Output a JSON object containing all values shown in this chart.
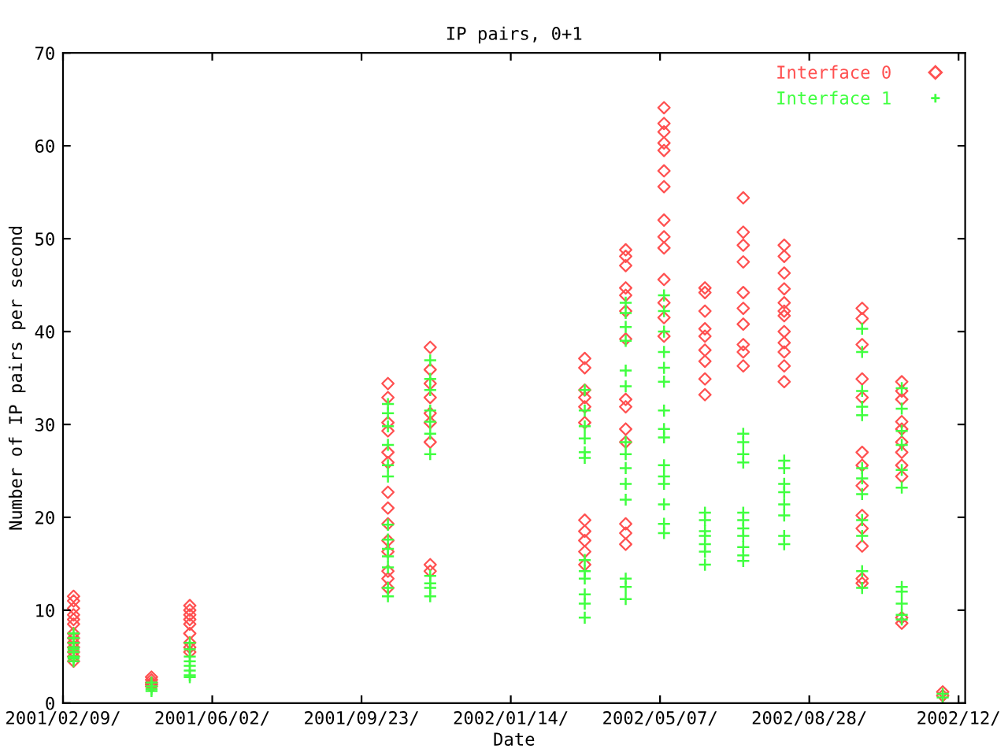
{
  "chart_data": {
    "type": "scatter",
    "title": "IP pairs, 0+1",
    "xlabel": "Date",
    "ylabel": "Number of IP pairs per second",
    "xlim": [
      "2001-02-09",
      "2002-12-24"
    ],
    "ylim": [
      0,
      70
    ],
    "yticks": [
      0,
      10,
      20,
      30,
      40,
      50,
      60,
      70
    ],
    "xticks": [
      {
        "value": "2001-02-09",
        "label": "2001/02/09/"
      },
      {
        "value": "2001-06-02",
        "label": "2001/06/02/"
      },
      {
        "value": "2001-09-23",
        "label": "2001/09/23/"
      },
      {
        "value": "2002-01-14",
        "label": "2002/01/14/"
      },
      {
        "value": "2002-05-07",
        "label": "2002/05/07/"
      },
      {
        "value": "2002-08-28",
        "label": "2002/08/28/"
      },
      {
        "value": "2002-12-19",
        "label": "2002/12/"
      }
    ],
    "grid": false,
    "legend": "top right",
    "series": [
      {
        "name": "Interface 0",
        "color": "#ff5050",
        "marker": "diamond",
        "x": [
          "2001-02-17",
          "2001-02-17",
          "2001-02-17",
          "2001-02-17",
          "2001-02-17",
          "2001-02-17",
          "2001-02-17",
          "2001-02-17",
          "2001-02-17",
          "2001-02-17",
          "2001-02-17",
          "2001-02-17",
          "2001-02-17",
          "2001-04-17",
          "2001-04-17",
          "2001-04-17",
          "2001-04-17",
          "2001-04-17",
          "2001-05-16",
          "2001-05-16",
          "2001-05-16",
          "2001-05-16",
          "2001-05-16",
          "2001-05-16",
          "2001-05-16",
          "2001-05-16",
          "2001-05-16",
          "2001-10-13",
          "2001-10-13",
          "2001-10-13",
          "2001-10-13",
          "2001-10-13",
          "2001-10-13",
          "2001-10-13",
          "2001-10-13",
          "2001-10-13",
          "2001-10-13",
          "2001-10-13",
          "2001-10-13",
          "2001-10-13",
          "2001-10-13",
          "2001-11-14",
          "2001-11-14",
          "2001-11-14",
          "2001-11-14",
          "2001-11-14",
          "2001-11-14",
          "2001-11-14",
          "2001-11-14",
          "2001-11-14",
          "2002-03-11",
          "2002-03-11",
          "2002-03-11",
          "2002-03-11",
          "2002-03-11",
          "2002-03-11",
          "2002-03-11",
          "2002-03-11",
          "2002-03-11",
          "2002-03-11",
          "2002-03-11",
          "2002-04-11",
          "2002-04-11",
          "2002-04-11",
          "2002-04-11",
          "2002-04-11",
          "2002-04-11",
          "2002-04-11",
          "2002-04-11",
          "2002-04-11",
          "2002-04-11",
          "2002-04-11",
          "2002-04-11",
          "2002-04-11",
          "2002-04-11",
          "2002-05-10",
          "2002-05-10",
          "2002-05-10",
          "2002-05-10",
          "2002-05-10",
          "2002-05-10",
          "2002-05-10",
          "2002-05-10",
          "2002-05-10",
          "2002-05-10",
          "2002-05-10",
          "2002-05-10",
          "2002-05-10",
          "2002-05-10",
          "2002-06-10",
          "2002-06-10",
          "2002-06-10",
          "2002-06-10",
          "2002-06-10",
          "2002-06-10",
          "2002-06-10",
          "2002-06-10",
          "2002-06-10",
          "2002-07-09",
          "2002-07-09",
          "2002-07-09",
          "2002-07-09",
          "2002-07-09",
          "2002-07-09",
          "2002-07-09",
          "2002-07-09",
          "2002-07-09",
          "2002-07-09",
          "2002-08-09",
          "2002-08-09",
          "2002-08-09",
          "2002-08-09",
          "2002-08-09",
          "2002-08-09",
          "2002-08-09",
          "2002-08-09",
          "2002-08-09",
          "2002-08-09",
          "2002-08-09",
          "2002-08-09",
          "2002-10-07",
          "2002-10-07",
          "2002-10-07",
          "2002-10-07",
          "2002-10-07",
          "2002-10-07",
          "2002-10-07",
          "2002-10-07",
          "2002-10-07",
          "2002-10-07",
          "2002-10-07",
          "2002-10-07",
          "2002-10-07",
          "2002-11-06",
          "2002-11-06",
          "2002-11-06",
          "2002-11-06",
          "2002-11-06",
          "2002-11-06",
          "2002-11-06",
          "2002-11-06",
          "2002-11-06",
          "2002-11-06",
          "2002-11-06",
          "2002-12-07",
          "2002-12-07"
        ],
        "values": [
          11.5,
          11,
          10.2,
          9.5,
          9,
          8.5,
          7.5,
          7,
          6.5,
          6,
          5.5,
          5,
          4.5,
          2.8,
          2.5,
          2.2,
          2,
          1.8,
          10.5,
          10,
          9.5,
          9,
          8.5,
          7.5,
          6.5,
          6,
          5.5,
          34.4,
          32.9,
          30.2,
          29.3,
          27,
          25.9,
          22.7,
          21,
          19.3,
          17.5,
          16.3,
          14.2,
          13.4,
          12.4,
          38.3,
          35.9,
          34.4,
          32.9,
          31.2,
          30.2,
          28.1,
          14.9,
          14.2,
          37.1,
          36.1,
          33.7,
          32.9,
          31.9,
          30.2,
          19.7,
          18.5,
          17.5,
          16.3,
          14.9,
          48.8,
          48.1,
          47.1,
          44.7,
          43.9,
          42.2,
          39.2,
          32.7,
          31.9,
          29.5,
          28.1,
          19.3,
          18.3,
          17.1,
          64.1,
          62.4,
          61.5,
          60.3,
          59.5,
          57.3,
          55.6,
          52,
          50.2,
          49,
          45.6,
          43.1,
          41.5,
          39.5,
          44.7,
          44.2,
          42.2,
          40.3,
          39.5,
          38,
          36.8,
          34.9,
          33.2,
          54.4,
          50.7,
          49.3,
          47.5,
          44.2,
          42.5,
          40.8,
          38.6,
          37.8,
          36.3,
          49.3,
          48.1,
          46.3,
          44.6,
          43.1,
          42.2,
          41.7,
          40,
          38.8,
          37.8,
          36.3,
          34.6,
          42.5,
          41.4,
          38.6,
          34.9,
          32.9,
          27,
          25.6,
          23.4,
          20.2,
          18.8,
          16.9,
          13.4,
          12.9,
          34.6,
          33.6,
          32.7,
          30.3,
          29.5,
          28.1,
          27,
          25.6,
          24.4,
          9.2,
          8.6,
          1.2,
          0.8
        ]
      },
      {
        "name": "Interface 1",
        "color": "#40ff40",
        "marker": "cross",
        "x": [
          "2001-02-17",
          "2001-02-17",
          "2001-02-17",
          "2001-02-17",
          "2001-02-17",
          "2001-02-17",
          "2001-02-17",
          "2001-02-17",
          "2001-02-17",
          "2001-04-17",
          "2001-04-17",
          "2001-04-17",
          "2001-04-17",
          "2001-05-16",
          "2001-05-16",
          "2001-05-16",
          "2001-05-16",
          "2001-05-16",
          "2001-05-16",
          "2001-05-16",
          "2001-05-16",
          "2001-10-13",
          "2001-10-13",
          "2001-10-13",
          "2001-10-13",
          "2001-10-13",
          "2001-10-13",
          "2001-10-13",
          "2001-10-13",
          "2001-10-13",
          "2001-10-13",
          "2001-10-13",
          "2001-10-13",
          "2001-10-13",
          "2001-11-14",
          "2001-11-14",
          "2001-11-14",
          "2001-11-14",
          "2001-11-14",
          "2001-11-14",
          "2001-11-14",
          "2001-11-14",
          "2001-11-14",
          "2001-11-14",
          "2001-11-14",
          "2002-03-11",
          "2002-03-11",
          "2002-03-11",
          "2002-03-11",
          "2002-03-11",
          "2002-03-11",
          "2002-03-11",
          "2002-03-11",
          "2002-03-11",
          "2002-03-11",
          "2002-03-11",
          "2002-03-11",
          "2002-04-11",
          "2002-04-11",
          "2002-04-11",
          "2002-04-11",
          "2002-04-11",
          "2002-04-11",
          "2002-04-11",
          "2002-04-11",
          "2002-04-11",
          "2002-04-11",
          "2002-04-11",
          "2002-04-11",
          "2002-04-11",
          "2002-04-11",
          "2002-05-10",
          "2002-05-10",
          "2002-05-10",
          "2002-05-10",
          "2002-05-10",
          "2002-05-10",
          "2002-05-10",
          "2002-05-10",
          "2002-05-10",
          "2002-05-10",
          "2002-05-10",
          "2002-05-10",
          "2002-05-10",
          "2002-05-10",
          "2002-05-10",
          "2002-06-10",
          "2002-06-10",
          "2002-06-10",
          "2002-06-10",
          "2002-06-10",
          "2002-06-10",
          "2002-06-10",
          "2002-07-09",
          "2002-07-09",
          "2002-07-09",
          "2002-07-09",
          "2002-07-09",
          "2002-07-09",
          "2002-07-09",
          "2002-07-09",
          "2002-07-09",
          "2002-07-09",
          "2002-07-09",
          "2002-08-09",
          "2002-08-09",
          "2002-08-09",
          "2002-08-09",
          "2002-08-09",
          "2002-08-09",
          "2002-08-09",
          "2002-08-09",
          "2002-10-07",
          "2002-10-07",
          "2002-10-07",
          "2002-10-07",
          "2002-10-07",
          "2002-10-07",
          "2002-10-07",
          "2002-10-07",
          "2002-10-07",
          "2002-10-07",
          "2002-10-07",
          "2002-10-07",
          "2002-11-06",
          "2002-11-06",
          "2002-11-06",
          "2002-11-06",
          "2002-11-06",
          "2002-11-06",
          "2002-11-06",
          "2002-11-06",
          "2002-11-06",
          "2002-11-06",
          "2002-11-06",
          "2002-12-07",
          "2002-12-07"
        ],
        "values": [
          7.5,
          7,
          6.5,
          6,
          5.8,
          5.5,
          5,
          4.8,
          4.5,
          2.2,
          1.8,
          1.5,
          1.3,
          6.5,
          5.8,
          5,
          4.5,
          4,
          3.5,
          3,
          2.8,
          32.2,
          31.2,
          29.8,
          27.8,
          25.6,
          24.4,
          19.2,
          17.6,
          16.6,
          15.8,
          14.6,
          12.4,
          11.5,
          36.9,
          34.9,
          33.7,
          31.5,
          30.3,
          29,
          26.8,
          13.7,
          12.9,
          12.4,
          11.5,
          33.7,
          31.5,
          29.8,
          28.5,
          27,
          26.4,
          15.4,
          14.2,
          13.4,
          11.7,
          10.7,
          9.2,
          43.1,
          42,
          40.5,
          39,
          35.8,
          34.1,
          28.1,
          26.8,
          25.3,
          23.6,
          21.9,
          13.4,
          12.5,
          11.2,
          43.9,
          42.2,
          40,
          37.8,
          36.1,
          34.6,
          31.5,
          29.5,
          28.6,
          25.6,
          24.4,
          23.6,
          21.4,
          19.3,
          18.3,
          20.5,
          19.7,
          18.5,
          18,
          17.1,
          16.3,
          14.9,
          29,
          28.1,
          26.8,
          25.9,
          20.5,
          19.7,
          18.8,
          18,
          16.8,
          15.9,
          15.3,
          26.1,
          25.3,
          23.6,
          22.7,
          21.4,
          20.2,
          18,
          17.1,
          40.3,
          37.8,
          33.6,
          31.9,
          31,
          25.3,
          24.2,
          22.5,
          19.7,
          18,
          14.2,
          12.4,
          33.9,
          31.7,
          29.3,
          27.8,
          25.1,
          23.2,
          12.5,
          12,
          10.7,
          9.5,
          9,
          1,
          0.6
        ]
      }
    ]
  }
}
